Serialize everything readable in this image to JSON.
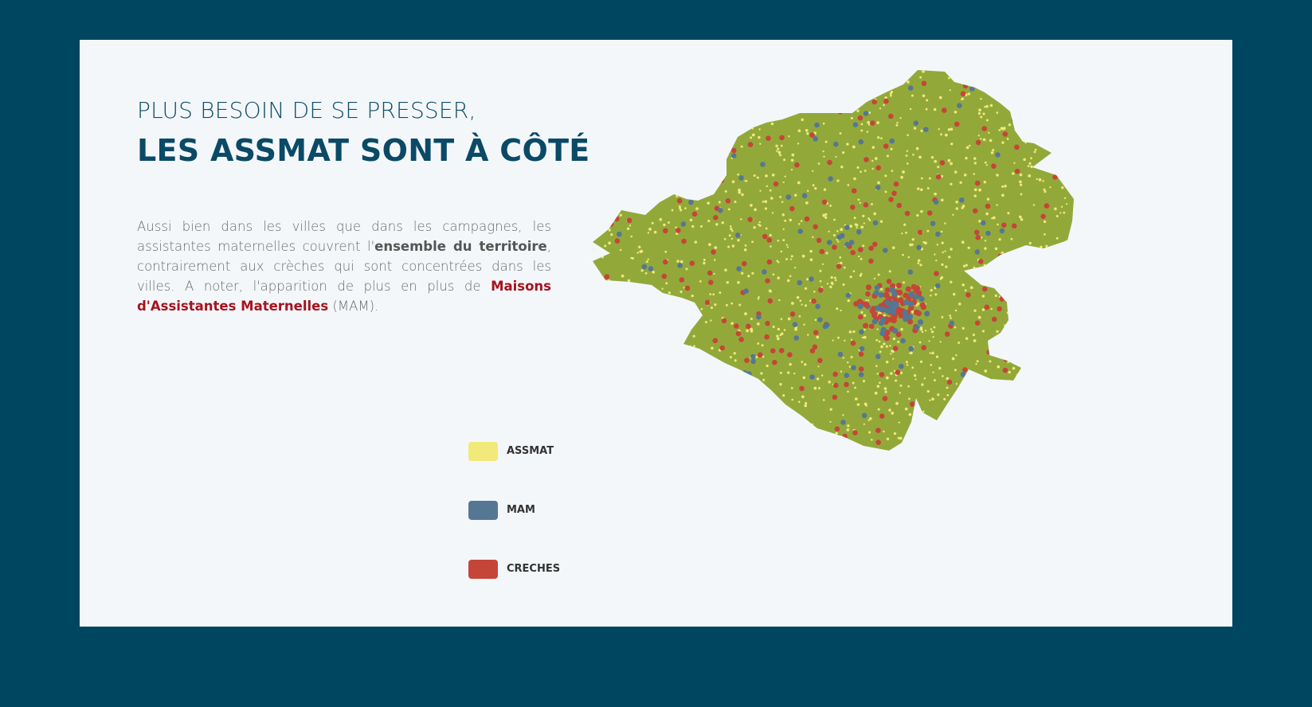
{
  "title": {
    "line1": "PLUS BESOIN DE SE PRESSER,",
    "line2": "LES ASSMAT SONT À CÔTÉ"
  },
  "body": {
    "part1": "Aussi bien dans les villes que dans les campagnes, les assistantes maternelles couvrent l'",
    "emphasis": "ensemble du territoire",
    "part2": ", contrairement aux crèches qui sont concentrées dans les villes. A noter, l'apparition de plus en plus de ",
    "link": "Maisons d'Assistantes Maternelles",
    "part3": " (MAM)."
  },
  "legend": [
    {
      "label": "ASSMAT",
      "color": "#f1e97a"
    },
    {
      "label": "MAM",
      "color": "#567793"
    },
    {
      "label": "CRECHES",
      "color": "#c64539"
    }
  ],
  "map": {
    "land_color": "#92a93a",
    "icon": "territory-map"
  }
}
